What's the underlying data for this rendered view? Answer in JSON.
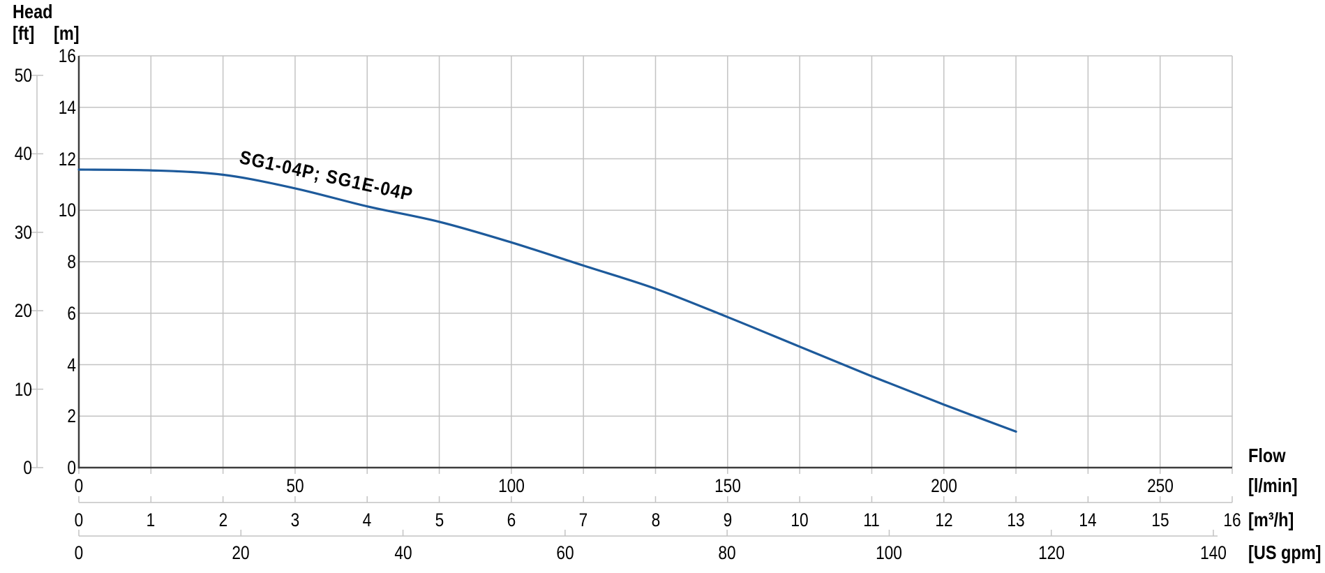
{
  "labels": {
    "head_title": "Head",
    "ft_unit": "[ft]",
    "m_unit": "[m]",
    "flow_title": "Flow",
    "lmin_unit": "[l/min]",
    "m3h_unit": "[m³/h]",
    "usgpm_unit": "[US gpm]",
    "curve_label": "SG1-04P; SG1E-04P"
  },
  "colors": {
    "curve": "#1d5a9b",
    "grid": "#c3c3c3",
    "axis_dark": "#3d3d3d",
    "axis_light": "#c3c3c3",
    "text": "#000000"
  },
  "chart_data": {
    "type": "line",
    "title": "",
    "axis_titles": {
      "y": "Head",
      "x": "Flow"
    },
    "grid": true,
    "legend_position": "inline-curve-label",
    "series": [
      {
        "name": "SG1-04P; SG1E-04P",
        "x_m3h": [
          0,
          1,
          2,
          3,
          4,
          5,
          6,
          7,
          8,
          9,
          10,
          11,
          12,
          13
        ],
        "head_m": [
          11.58,
          11.55,
          11.38,
          10.85,
          10.15,
          9.55,
          8.75,
          7.85,
          6.95,
          5.85,
          4.7,
          3.55,
          2.45,
          1.4
        ]
      }
    ],
    "axes": {
      "y_head_m": {
        "unit": "[m]",
        "range": [
          0,
          16
        ],
        "ticks": [
          0,
          2,
          4,
          6,
          8,
          10,
          12,
          14,
          16
        ]
      },
      "y_head_ft": {
        "unit": "[ft]",
        "range": [
          0,
          52.5
        ],
        "ticks": [
          0,
          10,
          20,
          30,
          40,
          50
        ]
      },
      "x_flow_lmin": {
        "unit": "[l/min]",
        "range": [
          0,
          266.7
        ],
        "ticks": [
          0,
          50,
          100,
          150,
          200,
          250
        ]
      },
      "x_flow_m3h": {
        "unit": "[m³/h]",
        "range": [
          0,
          16
        ],
        "ticks": [
          0,
          1,
          2,
          3,
          4,
          5,
          6,
          7,
          8,
          9,
          10,
          11,
          12,
          13,
          14,
          15,
          16
        ]
      },
      "x_flow_usgpm": {
        "unit": "[US gpm]",
        "ticks": [
          0,
          20,
          40,
          60,
          80,
          100,
          120,
          140
        ]
      }
    }
  }
}
